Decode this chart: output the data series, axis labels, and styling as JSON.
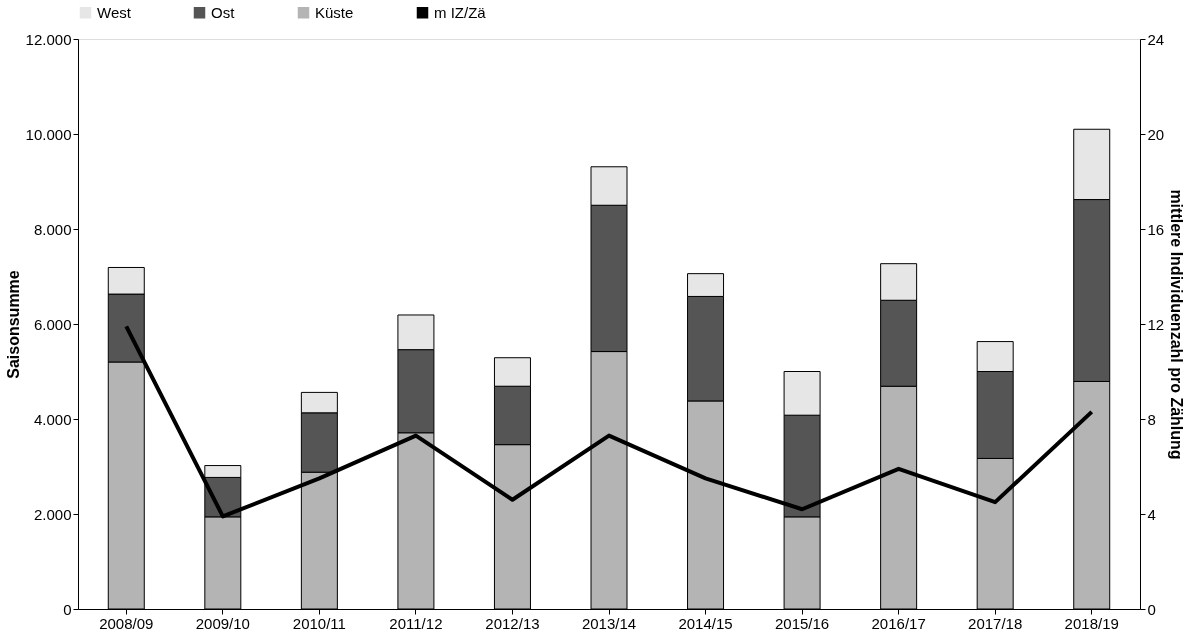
{
  "chart_data": {
    "type": "bar",
    "stacked": true,
    "ylabel": "Saisonsumme",
    "y2label": "mittlere Individuenzahl pro Zählung",
    "categories": [
      "2008/09",
      "2009/10",
      "2010/11",
      "2011/12",
      "2012/13",
      "2013/14",
      "2014/15",
      "2015/16",
      "2016/17",
      "2017/18",
      "2018/19"
    ],
    "series": [
      {
        "name": "Küste",
        "color": "#b4b4b4",
        "values": [
          5200,
          1940,
          2880,
          3710,
          3460,
          5420,
          4380,
          1940,
          4690,
          3170,
          4790
        ]
      },
      {
        "name": "Ost",
        "color": "#555555",
        "values": [
          1430,
          830,
          1250,
          1750,
          1230,
          3080,
          2200,
          2140,
          1810,
          1830,
          3830
        ]
      },
      {
        "name": "West",
        "color": "#e6e6e6",
        "values": [
          560,
          250,
          430,
          730,
          600,
          810,
          480,
          920,
          770,
          630,
          1480
        ]
      },
      {
        "name": "m IZ/Zä",
        "type": "line",
        "axis": "y2",
        "color": "#000000",
        "values": [
          11.9,
          3.9,
          5.5,
          7.3,
          4.6,
          7.3,
          5.5,
          4.2,
          5.9,
          4.5,
          8.3
        ]
      }
    ],
    "ylim": [
      0,
      12000
    ],
    "yticks": [
      0,
      {
        "value": 2000,
        "label": "2.000"
      },
      {
        "value": 4000,
        "label": "4.000"
      },
      {
        "value": 6000,
        "label": "6.000"
      },
      {
        "value": 8000,
        "label": "8.000"
      },
      {
        "value": 10000,
        "label": "10.000"
      },
      {
        "value": 12000,
        "label": "12.000"
      }
    ],
    "y2lim": [
      0,
      24
    ],
    "y2ticks": [
      0,
      4,
      8,
      12,
      16,
      20,
      24
    ],
    "grid": false,
    "legend": "top",
    "marker": "none",
    "line_style": "solid"
  }
}
